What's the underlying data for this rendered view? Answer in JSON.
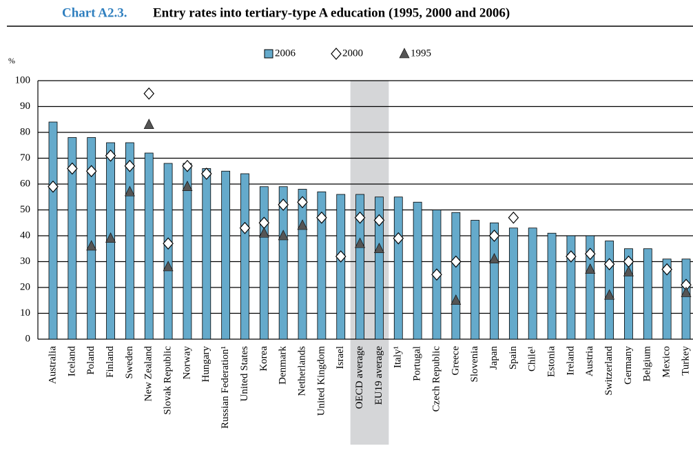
{
  "chart_data": {
    "type": "bar",
    "title_label": "Chart A2.3.",
    "title": "Entry rates into tertiary-type A education (1995, 2000 and 2006)",
    "y_unit": "%",
    "categories": [
      "Australia",
      "Iceland",
      "Poland",
      "Finland",
      "Sweden",
      "New Zealand",
      "Slovak Republic",
      "Norway",
      "Hungary",
      "Russian Federation¹",
      "United States",
      "Korea",
      "Denmark",
      "Netherlands",
      "United Kingdom",
      "Israel",
      "OECD average",
      "EU19 average",
      "Italy¹",
      "Portugal",
      "Czech Republic",
      "Greece",
      "Slovenia",
      "Japan",
      "Spain",
      "Chile¹",
      "Estonia",
      "Ireland",
      "Austria",
      "Switzerland",
      "Germany",
      "Belgium",
      "Mexico",
      "Turkey"
    ],
    "highlight": [
      16,
      17
    ],
    "series": [
      {
        "name": "2006",
        "marker": "bar",
        "color": "#65aacb",
        "values": [
          84,
          78,
          78,
          76,
          76,
          72,
          68,
          68,
          66,
          65,
          64,
          59,
          59,
          58,
          57,
          56,
          56,
          55,
          55,
          53,
          50,
          49,
          46,
          45,
          43,
          43,
          41,
          40,
          40,
          38,
          35,
          35,
          31,
          31
        ]
      },
      {
        "name": "2000",
        "marker": "diamond",
        "color": "#ffffff",
        "values": [
          59,
          66,
          65,
          71,
          67,
          95,
          37,
          67,
          64,
          null,
          43,
          45,
          52,
          53,
          47,
          32,
          47,
          46,
          39,
          null,
          25,
          30,
          null,
          40,
          47,
          null,
          null,
          32,
          33,
          29,
          30,
          null,
          27,
          21
        ]
      },
      {
        "name": "1995",
        "marker": "triangle",
        "color": "#555555",
        "values": [
          null,
          null,
          36,
          39,
          57,
          83,
          28,
          59,
          null,
          null,
          null,
          41,
          40,
          44,
          null,
          null,
          37,
          35,
          null,
          null,
          null,
          15,
          null,
          31,
          null,
          null,
          null,
          null,
          27,
          17,
          26,
          null,
          null,
          18
        ]
      }
    ],
    "ylim": [
      0,
      100
    ],
    "yticks": [
      0,
      10,
      20,
      30,
      40,
      50,
      60,
      70,
      80,
      90,
      100
    ],
    "grid": true
  }
}
